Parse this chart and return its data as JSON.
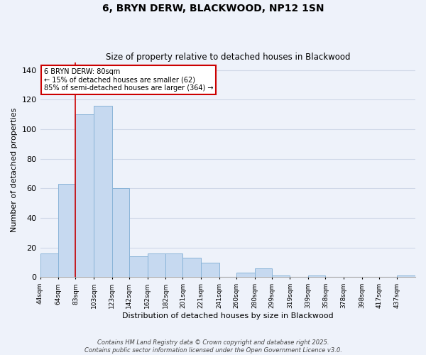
{
  "title": "6, BRYN DERW, BLACKWOOD, NP12 1SN",
  "subtitle": "Size of property relative to detached houses in Blackwood",
  "xlabel": "Distribution of detached houses by size in Blackwood",
  "ylabel": "Number of detached properties",
  "bin_labels": [
    "44sqm",
    "64sqm",
    "83sqm",
    "103sqm",
    "123sqm",
    "142sqm",
    "162sqm",
    "182sqm",
    "201sqm",
    "221sqm",
    "241sqm",
    "260sqm",
    "280sqm",
    "299sqm",
    "319sqm",
    "339sqm",
    "358sqm",
    "378sqm",
    "398sqm",
    "417sqm",
    "437sqm"
  ],
  "bin_edges": [
    44,
    64,
    83,
    103,
    123,
    142,
    162,
    182,
    201,
    221,
    241,
    260,
    280,
    299,
    319,
    339,
    358,
    378,
    398,
    417,
    437
  ],
  "bar_heights": [
    16,
    63,
    110,
    116,
    60,
    14,
    16,
    16,
    13,
    10,
    0,
    3,
    6,
    1,
    0,
    1,
    0,
    0,
    0,
    0,
    1
  ],
  "bar_color": "#c6d9f0",
  "bar_edge_color": "#8ab4d8",
  "vline_x": 83,
  "vline_color": "#cc0000",
  "annotation_line1": "6 BRYN DERW: 80sqm",
  "annotation_line2": "← 15% of detached houses are smaller (62)",
  "annotation_line3": "85% of semi-detached houses are larger (364) →",
  "annotation_box_color": "#cc0000",
  "ylim": [
    0,
    145
  ],
  "yticks": [
    0,
    20,
    40,
    60,
    80,
    100,
    120,
    140
  ],
  "grid_color": "#d0d8e8",
  "background_color": "#eef2fa",
  "footer_line1": "Contains HM Land Registry data © Crown copyright and database right 2025.",
  "footer_line2": "Contains public sector information licensed under the Open Government Licence v3.0."
}
